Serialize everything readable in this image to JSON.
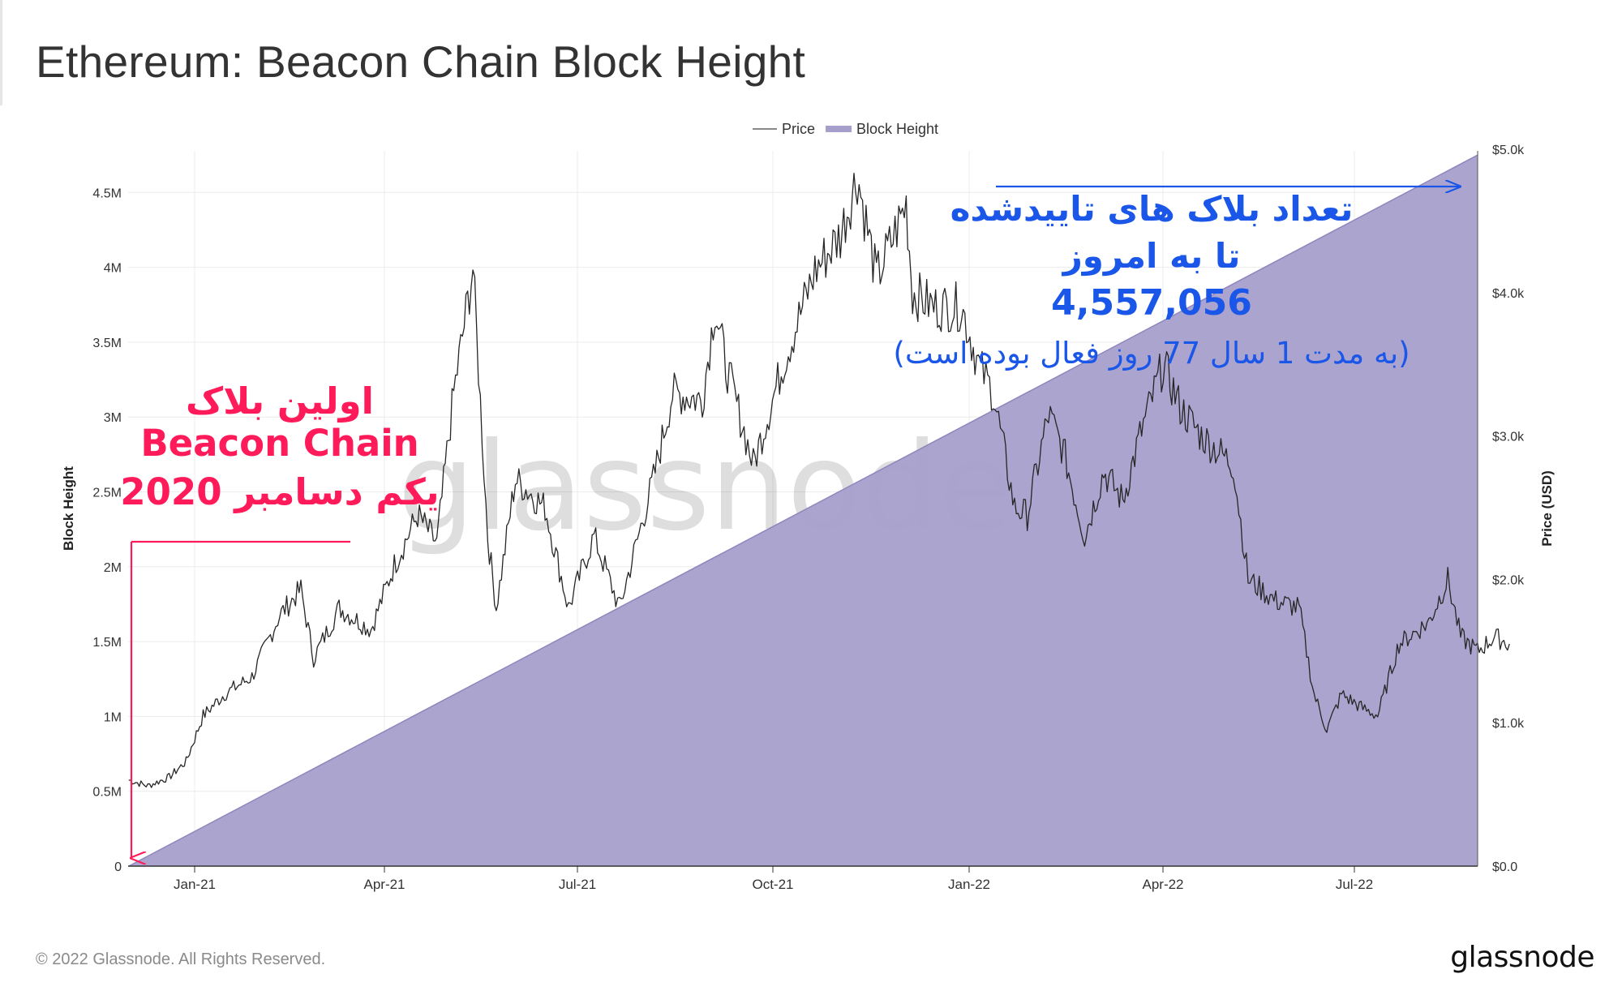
{
  "page": {
    "title": "Ethereum: Beacon Chain Block Height",
    "footer": "© 2022 Glassnode. All Rights Reserved.",
    "brand": "glassnode",
    "watermark": "glassnode"
  },
  "chart_data": {
    "type": "area",
    "title": "Ethereum: Beacon Chain Block Height",
    "x_tick_labels": [
      "Jan-21",
      "Apr-21",
      "Jul-21",
      "Oct-21",
      "Jan-22",
      "Apr-22",
      "Jul-22"
    ],
    "left_axis": {
      "label": "Block Height",
      "ticks": [
        "0",
        "0.5M",
        "1M",
        "1.5M",
        "2M",
        "2.5M",
        "3M",
        "3.5M",
        "4M",
        "4.5M"
      ],
      "range": [
        0,
        4800000
      ]
    },
    "right_axis": {
      "label": "Price (USD)",
      "ticks": [
        "$0.0",
        "$1.0k",
        "$2.0k",
        "$3.0k",
        "$4.0k",
        "$5.0k"
      ],
      "range": [
        0,
        5000
      ]
    },
    "legend": {
      "position": "top-center",
      "items": [
        {
          "name": "Price",
          "style": "line",
          "color": "#888888"
        },
        {
          "name": "Block Height",
          "style": "area",
          "color": "#a79fcb"
        }
      ]
    },
    "grid": true,
    "series": [
      {
        "name": "Block Height",
        "axis": "left",
        "color": "#a79fcb",
        "points": [
          [
            "2020-12-01",
            0
          ],
          [
            "2022-09-14",
            4750000
          ]
        ]
      },
      {
        "name": "Price",
        "axis": "right",
        "color": "#222222",
        "points": [
          [
            "2020-12-01",
            600
          ],
          [
            "2020-12-10",
            560
          ],
          [
            "2020-12-20",
            620
          ],
          [
            "2020-12-28",
            730
          ],
          [
            "2021-01-05",
            1050
          ],
          [
            "2021-01-15",
            1200
          ],
          [
            "2021-01-28",
            1320
          ],
          [
            "2021-02-10",
            1750
          ],
          [
            "2021-02-20",
            1930
          ],
          [
            "2021-02-26",
            1450
          ],
          [
            "2021-03-10",
            1800
          ],
          [
            "2021-03-25",
            1650
          ],
          [
            "2021-04-05",
            2100
          ],
          [
            "2021-04-16",
            2450
          ],
          [
            "2021-04-25",
            2250
          ],
          [
            "2021-05-03",
            3300
          ],
          [
            "2021-05-12",
            4170
          ],
          [
            "2021-05-19",
            2300
          ],
          [
            "2021-05-23",
            1800
          ],
          [
            "2021-06-01",
            2700
          ],
          [
            "2021-06-15",
            2500
          ],
          [
            "2021-06-26",
            1800
          ],
          [
            "2021-07-08",
            2300
          ],
          [
            "2021-07-20",
            1800
          ],
          [
            "2021-08-05",
            2700
          ],
          [
            "2021-08-14",
            3300
          ],
          [
            "2021-08-28",
            3250
          ],
          [
            "2021-09-03",
            3900
          ],
          [
            "2021-09-08",
            3500
          ],
          [
            "2021-09-21",
            2800
          ],
          [
            "2021-10-05",
            3500
          ],
          [
            "2021-10-20",
            4150
          ],
          [
            "2021-11-01",
            4400
          ],
          [
            "2021-11-09",
            4820
          ],
          [
            "2021-11-18",
            4100
          ],
          [
            "2021-11-25",
            4350
          ],
          [
            "2021-12-02",
            4620
          ],
          [
            "2021-12-05",
            4000
          ],
          [
            "2021-12-15",
            3900
          ],
          [
            "2021-12-28",
            3900
          ],
          [
            "2022-01-05",
            3500
          ],
          [
            "2022-01-12",
            3300
          ],
          [
            "2022-01-22",
            2500
          ],
          [
            "2022-01-28",
            2450
          ],
          [
            "2022-02-07",
            3150
          ],
          [
            "2022-02-14",
            2900
          ],
          [
            "2022-02-24",
            2300
          ],
          [
            "2022-03-05",
            2750
          ],
          [
            "2022-03-14",
            2550
          ],
          [
            "2022-03-22",
            3000
          ],
          [
            "2022-04-02",
            3500
          ],
          [
            "2022-04-10",
            3200
          ],
          [
            "2022-04-20",
            3000
          ],
          [
            "2022-05-05",
            2800
          ],
          [
            "2022-05-12",
            2000
          ],
          [
            "2022-05-25",
            1850
          ],
          [
            "2022-06-05",
            1800
          ],
          [
            "2022-06-12",
            1200
          ],
          [
            "2022-06-18",
            950
          ],
          [
            "2022-06-25",
            1200
          ],
          [
            "2022-07-05",
            1100
          ],
          [
            "2022-07-12",
            1050
          ],
          [
            "2022-07-22",
            1550
          ],
          [
            "2022-08-05",
            1700
          ],
          [
            "2022-08-14",
            2000
          ],
          [
            "2022-08-20",
            1600
          ],
          [
            "2022-08-28",
            1500
          ],
          [
            "2022-09-05",
            1600
          ],
          [
            "2022-09-12",
            1550
          ]
        ]
      }
    ],
    "annotations": {
      "left": {
        "lines": [
          "اولین بلاک",
          "Beacon Chain",
          "یکم دسامبر 2020"
        ],
        "color": "#ff1a5a"
      },
      "right": {
        "lines": [
          "تعداد بلاک های تاییدشده",
          "تا به امروز",
          "4,557,056",
          "(به مدت 1 سال 77 روز فعال بوده است)"
        ],
        "color": "#1a56e8"
      }
    }
  }
}
